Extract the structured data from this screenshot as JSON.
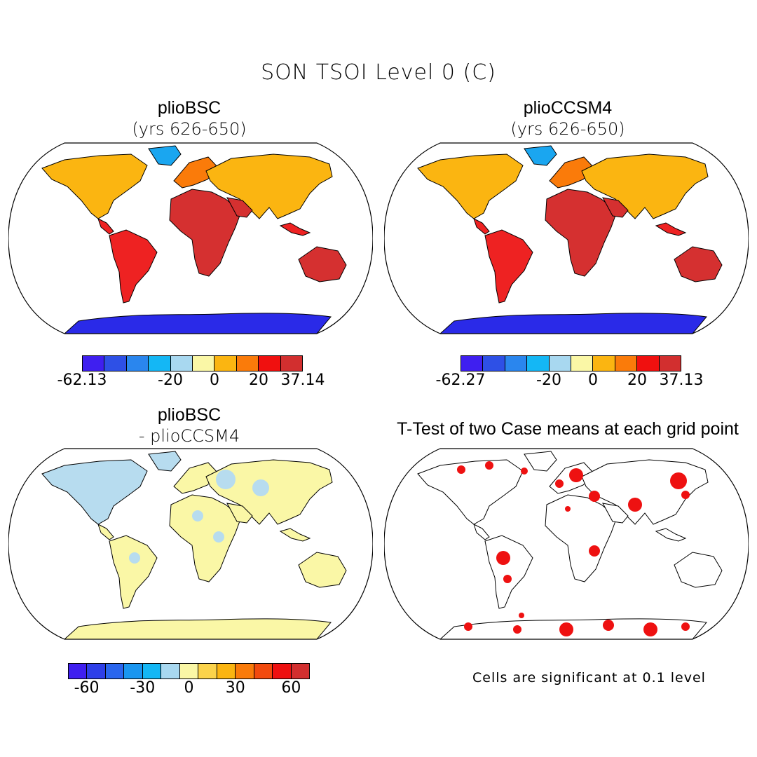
{
  "figure": {
    "title": "SON TSOI Level 0 (C)"
  },
  "panels": [
    {
      "title": "plioBSC",
      "subtitle": "(yrs 626-650)"
    },
    {
      "title": "plioCCSM4",
      "subtitle": "(yrs 626-650)"
    },
    {
      "title": "plioBSC",
      "subtitle": "- plioCCSM4"
    },
    {
      "title": "T-Test of two Case means at each grid point",
      "subtitle": ""
    }
  ],
  "colorbars": {
    "abs_colors": [
      "#3f1ff0",
      "#2e50e6",
      "#2a86ee",
      "#14b7f5",
      "#a8d8f0",
      "#faf7a6",
      "#fbb511",
      "#fa7b0a",
      "#f0100f",
      "#d22f2f"
    ],
    "diff_colors": [
      "#3f1ff0",
      "#2e3fe8",
      "#2a66ee",
      "#1a96f0",
      "#14b7f5",
      "#a8d8f0",
      "#faf7a6",
      "#fbd34b",
      "#fbb511",
      "#fa7b0a",
      "#f24a0e",
      "#ee1010",
      "#d22f2f"
    ],
    "bsc_ticks": [
      "-62.13",
      "-20",
      "0",
      "20",
      "37.14"
    ],
    "ccsm4_ticks": [
      "-62.27",
      "-20",
      "0",
      "20",
      "37.13"
    ],
    "diff_ticks": [
      "-60",
      "-30",
      "0",
      "30",
      "60"
    ]
  },
  "significance_note": "Cells are significant at 0.1 level",
  "map_colors": {
    "warm": "#ee2222",
    "warm_dark": "#d53030",
    "mid": "#fa7b0a",
    "orange": "#fbb511",
    "cold": "#2a2ae8",
    "cold_light": "#1aa6f0",
    "diff_base": "#faf7a6",
    "diff_blue": "#b7dcef",
    "sig": "#ee1111",
    "ocean": "#ffffff",
    "outline": "#000000"
  }
}
